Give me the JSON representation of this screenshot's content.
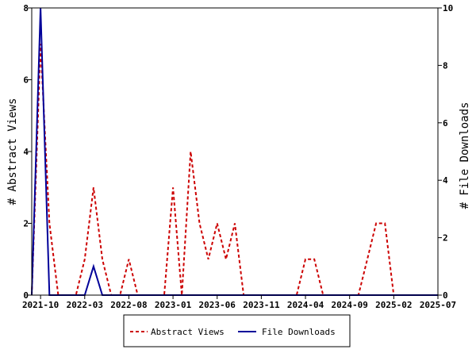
{
  "chart_data": {
    "type": "line",
    "ylabel_left": "# Abstract Views",
    "ylabel_right": "# File Downloads",
    "ylim_left": [
      0,
      8
    ],
    "ylim_right": [
      0,
      10
    ],
    "yticks_left": [
      0,
      2,
      4,
      6,
      8
    ],
    "yticks_right": [
      0,
      2,
      4,
      6,
      8,
      10
    ],
    "xlim": [
      "2021-09",
      "2025-07"
    ],
    "xticks": [
      "2021-10",
      "2022-03",
      "2022-08",
      "2023-01",
      "2023-06",
      "2023-11",
      "2024-04",
      "2024-09",
      "2025-02",
      "2025-07"
    ],
    "grid": false,
    "legend_position": "bottom-center",
    "series": [
      {
        "name": "Abstract Views",
        "axis": "left",
        "color": "#cc0000",
        "style": "dashed",
        "x": [
          "2021-09",
          "2021-10",
          "2021-11",
          "2021-12",
          "2022-01",
          "2022-02",
          "2022-03",
          "2022-04",
          "2022-05",
          "2022-06",
          "2022-07",
          "2022-08",
          "2022-09",
          "2022-10",
          "2022-11",
          "2022-12",
          "2023-01",
          "2023-02",
          "2023-03",
          "2023-04",
          "2023-05",
          "2023-06",
          "2023-07",
          "2023-08",
          "2023-09",
          "2023-10",
          "2023-11",
          "2023-12",
          "2024-01",
          "2024-02",
          "2024-03",
          "2024-04",
          "2024-05",
          "2024-06",
          "2024-07",
          "2024-08",
          "2024-09",
          "2024-10",
          "2024-11",
          "2024-12",
          "2025-01",
          "2025-02",
          "2025-03",
          "2025-04",
          "2025-05",
          "2025-06",
          "2025-07"
        ],
        "values": [
          0,
          7,
          2,
          0,
          0,
          0,
          1,
          3,
          1,
          0,
          0,
          1,
          0,
          0,
          0,
          0,
          3,
          0,
          4,
          2,
          1,
          2,
          1,
          2,
          0,
          0,
          0,
          0,
          0,
          0,
          0,
          1,
          1,
          0,
          0,
          0,
          0,
          0,
          1,
          2,
          2,
          0,
          0,
          0,
          0,
          0,
          0
        ]
      },
      {
        "name": "File Downloads",
        "axis": "right",
        "color": "#000099",
        "style": "solid",
        "x": [
          "2021-09",
          "2021-10",
          "2021-11",
          "2021-12",
          "2022-01",
          "2022-02",
          "2022-03",
          "2022-04",
          "2022-05",
          "2022-06",
          "2022-07",
          "2022-08",
          "2022-09",
          "2022-10",
          "2022-11",
          "2022-12",
          "2023-01",
          "2023-02",
          "2023-03",
          "2023-04",
          "2023-05",
          "2023-06",
          "2023-07",
          "2023-08",
          "2023-09",
          "2023-10",
          "2023-11",
          "2023-12",
          "2024-01",
          "2024-02",
          "2024-03",
          "2024-04",
          "2024-05",
          "2024-06",
          "2024-07",
          "2024-08",
          "2024-09",
          "2024-10",
          "2024-11",
          "2024-12",
          "2025-01",
          "2025-02",
          "2025-03",
          "2025-04",
          "2025-05",
          "2025-06",
          "2025-07"
        ],
        "values": [
          0,
          10,
          0,
          0,
          0,
          0,
          0,
          1,
          0,
          0,
          0,
          0,
          0,
          0,
          0,
          0,
          0,
          0,
          0,
          0,
          0,
          0,
          0,
          0,
          0,
          0,
          0,
          0,
          0,
          0,
          0,
          0,
          0,
          0,
          0,
          0,
          0,
          0,
          0,
          0,
          0,
          0,
          0,
          0,
          0,
          0,
          0
        ]
      }
    ]
  }
}
